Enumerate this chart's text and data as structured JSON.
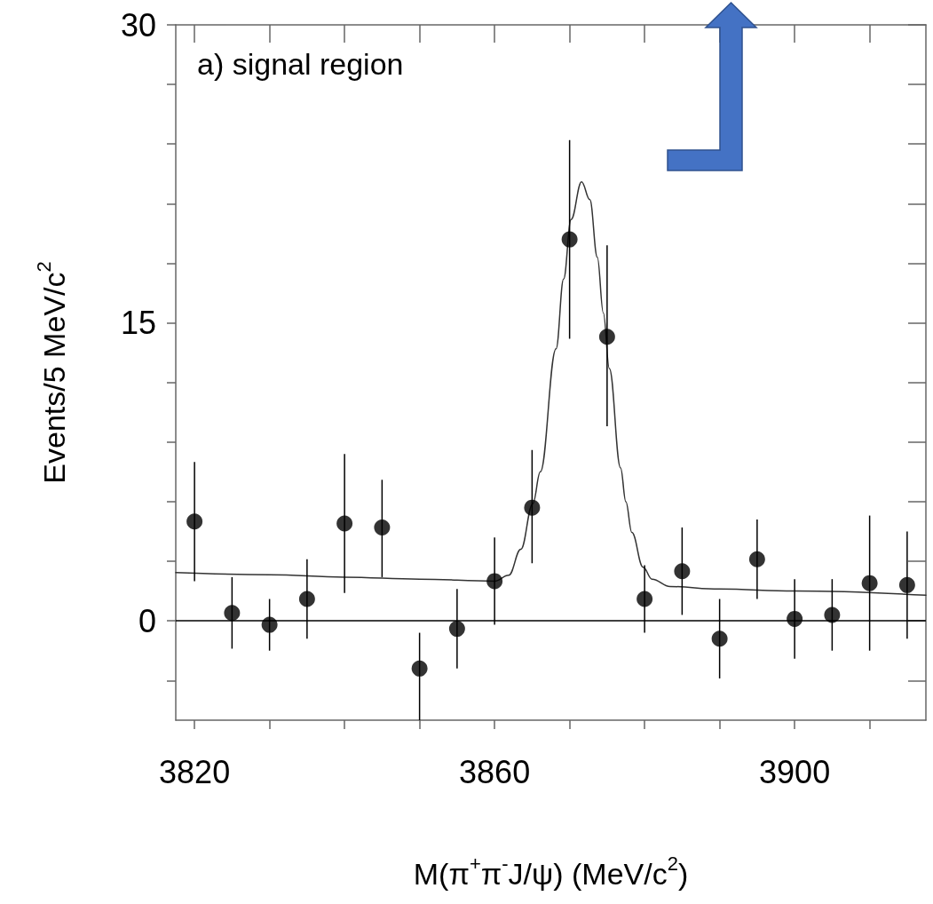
{
  "chart_data": {
    "type": "scatter",
    "xlabel": "M(π$^{+}$π$^{-}$J/ψ) (MeV/c$^{2}$)",
    "ylabel": "Events/5 MeV/c$^{2}$",
    "annotations": [
      "a) signal region"
    ],
    "xlim": [
      3817.5,
      3917.5
    ],
    "xticks": [
      3820,
      {
        "value": 3830,
        "label": null
      },
      {
        "value": 3840,
        "label": null
      },
      {
        "value": 3850,
        "label": null
      },
      3860,
      {
        "value": 3870,
        "label": null
      },
      {
        "value": 3880,
        "label": null
      },
      {
        "value": 3890,
        "label": null
      },
      3900,
      {
        "value": 3910,
        "label": null
      }
    ],
    "ylim": [
      -5,
      30
    ],
    "yticks": [
      {
        "value": -3,
        "label": null
      },
      0,
      {
        "value": 3,
        "label": null
      },
      {
        "value": 6,
        "label": null
      },
      {
        "value": 9,
        "label": null
      },
      {
        "value": 12,
        "label": null
      },
      15,
      {
        "value": 18,
        "label": null
      },
      {
        "value": 21,
        "label": null
      },
      {
        "value": 24,
        "label": null
      },
      {
        "value": 27,
        "label": null
      },
      30
    ],
    "grid": false,
    "ref_lines": [
      {
        "axis": "y",
        "value": 0,
        "color": "#000000"
      }
    ],
    "series": [
      {
        "color": "#000000",
        "marker": "circle",
        "x": [
          3820,
          3825,
          3830,
          3835,
          3840,
          3845,
          3850,
          3855,
          3860,
          3865,
          3870,
          3875,
          3880,
          3885,
          3890,
          3895,
          3900,
          3905,
          3910,
          3915
        ],
        "values": [
          5.0,
          0.4,
          -0.2,
          1.1,
          4.9,
          4.7,
          -2.4,
          -0.4,
          2.0,
          5.7,
          19.2,
          14.3,
          1.1,
          2.5,
          -0.9,
          3.1,
          0.1,
          0.3,
          1.9,
          1.8
        ],
        "errors": [
          [
            2.0,
            8.0
          ],
          [
            -1.4,
            2.2
          ],
          [
            -1.5,
            1.1
          ],
          [
            -0.9,
            3.1
          ],
          [
            1.4,
            8.4
          ],
          [
            2.2,
            7.1
          ],
          [
            -5.0,
            -0.6
          ],
          [
            -2.4,
            1.6
          ],
          [
            -0.2,
            4.2
          ],
          [
            2.9,
            8.6
          ],
          [
            14.2,
            24.2
          ],
          [
            9.8,
            18.9
          ],
          [
            -0.6,
            2.8
          ],
          [
            0.3,
            4.7
          ],
          [
            -2.9,
            1.1
          ],
          [
            1.1,
            5.1
          ],
          [
            -1.9,
            2.1
          ],
          [
            -1.5,
            2.1
          ],
          [
            -1.5,
            5.3
          ],
          [
            -0.9,
            4.5
          ]
        ]
      },
      {
        "type": "line",
        "color": "#333333",
        "marker": "none",
        "x": [
          3817.5,
          3830,
          3840,
          3850,
          3860,
          3861.9,
          3863.5,
          3865.1,
          3866.1,
          3868.2,
          3869.2,
          3870.2,
          3871.6,
          3872.7,
          3873.7,
          3874.5,
          3875.3,
          3876.8,
          3877.5,
          3878.3,
          3879.8,
          3881,
          3883.4,
          3890,
          3900,
          3917.5
        ],
        "values": [
          2.43,
          2.32,
          2.2,
          2.1,
          2.0,
          2.3,
          3.6,
          5.9,
          7.5,
          13.7,
          17.2,
          20.2,
          22.1,
          21.2,
          18.3,
          15.5,
          12.7,
          7.7,
          6.0,
          4.45,
          2.7,
          2.1,
          1.73,
          1.6,
          1.5,
          1.29
        ]
      }
    ]
  }
}
